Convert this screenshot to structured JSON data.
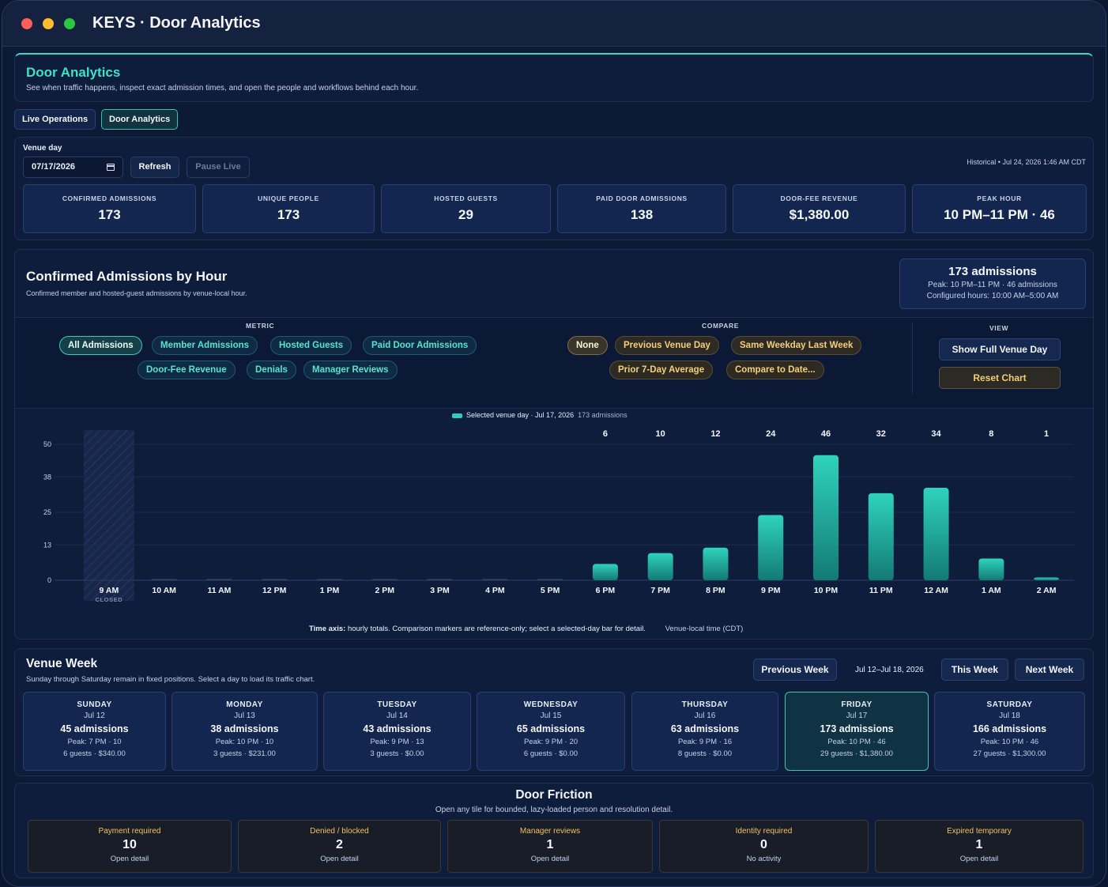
{
  "window": {
    "title": "KEYS · Door Analytics"
  },
  "header": {
    "title": "Door Analytics",
    "subtitle": "See when traffic happens, inspect exact admission times, and open the people and workflows behind each hour."
  },
  "tabs": [
    {
      "label": "Live Operations",
      "active": false
    },
    {
      "label": "Door Analytics",
      "active": true
    }
  ],
  "controls": {
    "venue_day_label": "Venue day",
    "date_value": "07/17/2026",
    "refresh_label": "Refresh",
    "pause_live_label": "Pause Live",
    "historical_text": "Historical • Jul 24, 2026 1:46 AM CDT"
  },
  "kpis": [
    {
      "label": "CONFIRMED ADMISSIONS",
      "value": "173"
    },
    {
      "label": "UNIQUE PEOPLE",
      "value": "173"
    },
    {
      "label": "HOSTED GUESTS",
      "value": "29"
    },
    {
      "label": "PAID DOOR ADMISSIONS",
      "value": "138"
    },
    {
      "label": "DOOR-FEE REVENUE",
      "value": "$1,380.00"
    },
    {
      "label": "PEAK HOUR",
      "value": "10 PM–11 PM · 46"
    }
  ],
  "chart_section": {
    "title": "Confirmed Admissions by Hour",
    "subtitle": "Confirmed member and hosted-guest admissions by venue-local hour.",
    "summary": {
      "headline": "173 admissions",
      "peak": "Peak: 10 PM–11 PM · 46 admissions",
      "hours": "Configured hours: 10:00 AM–5:00 AM"
    },
    "metric_label": "METRIC",
    "metric_options": [
      "All Admissions",
      "Member Admissions",
      "Hosted Guests",
      "Paid Door Admissions",
      "Door-Fee Revenue",
      "Denials",
      "Manager Reviews"
    ],
    "compare_label": "COMPARE",
    "compare_options": [
      "None",
      "Previous Venue Day",
      "Same Weekday Last Week",
      "Prior 7-Day Average",
      "Compare to Date..."
    ],
    "view_label": "VIEW",
    "show_full_label": "Show Full Venue Day",
    "reset_label": "Reset Chart",
    "legend_text": "Selected venue day · Jul 17, 2026",
    "legend_count": "173 admissions",
    "footnote_bold": "Time axis:",
    "footnote_text": "hourly totals. Comparison markers are reference-only; select a selected-day bar for detail.",
    "timezone": "Venue-local time (CDT)",
    "closed_label": "CLOSED"
  },
  "chart_data": {
    "type": "bar",
    "categories": [
      "9 AM",
      "10 AM",
      "11 AM",
      "12 PM",
      "1 PM",
      "2 PM",
      "3 PM",
      "4 PM",
      "5 PM",
      "6 PM",
      "7 PM",
      "8 PM",
      "9 PM",
      "10 PM",
      "11 PM",
      "12 AM",
      "1 AM",
      "2 AM"
    ],
    "values": [
      0,
      0,
      0,
      0,
      0,
      0,
      0,
      0,
      0,
      6,
      10,
      12,
      24,
      46,
      32,
      34,
      8,
      1
    ],
    "value_labels": [
      "",
      "",
      "",
      "",
      "",
      "",
      "",
      "",
      "",
      "6",
      "10",
      "12",
      "24",
      "46",
      "32",
      "34",
      "8",
      "1"
    ],
    "closed": [
      true,
      false,
      false,
      false,
      false,
      false,
      false,
      false,
      false,
      false,
      false,
      false,
      false,
      false,
      false,
      false,
      false,
      false
    ],
    "y_ticks": [
      "0",
      "13",
      "25",
      "38",
      "50"
    ],
    "ylim": [
      0,
      50
    ],
    "grid": true,
    "bar_color": "#2fd3bd",
    "legend_position": "top-center"
  },
  "week": {
    "title": "Venue Week",
    "subtitle": "Sunday through Saturday remain in fixed positions. Select a day to load its traffic chart.",
    "previous_label": "Previous Week",
    "range": "Jul 12–Jul 18, 2026",
    "this_label": "This Week",
    "next_label": "Next Week",
    "days": [
      {
        "name": "SUNDAY",
        "date": "Jul 12",
        "admissions": "45 admissions",
        "peak": "Peak: 7 PM · 10",
        "guests": "6 guests · $340.00",
        "selected": false
      },
      {
        "name": "MONDAY",
        "date": "Jul 13",
        "admissions": "38 admissions",
        "peak": "Peak: 10 PM · 10",
        "guests": "3 guests · $231.00",
        "selected": false
      },
      {
        "name": "TUESDAY",
        "date": "Jul 14",
        "admissions": "43 admissions",
        "peak": "Peak: 9 PM · 13",
        "guests": "3 guests · $0.00",
        "selected": false
      },
      {
        "name": "WEDNESDAY",
        "date": "Jul 15",
        "admissions": "65 admissions",
        "peak": "Peak: 9 PM · 20",
        "guests": "6 guests · $0.00",
        "selected": false
      },
      {
        "name": "THURSDAY",
        "date": "Jul 16",
        "admissions": "63 admissions",
        "peak": "Peak: 9 PM · 16",
        "guests": "8 guests · $0.00",
        "selected": false
      },
      {
        "name": "FRIDAY",
        "date": "Jul 17",
        "admissions": "173 admissions",
        "peak": "Peak: 10 PM · 46",
        "guests": "29 guests · $1,380.00",
        "selected": true
      },
      {
        "name": "SATURDAY",
        "date": "Jul 18",
        "admissions": "166 admissions",
        "peak": "Peak: 10 PM · 46",
        "guests": "27 guests · $1,300.00",
        "selected": false
      }
    ]
  },
  "friction": {
    "title": "Door Friction",
    "subtitle": "Open any tile for bounded, lazy-loaded person and resolution detail.",
    "tiles": [
      {
        "label": "Payment required",
        "value": "10",
        "detail": "Open detail"
      },
      {
        "label": "Denied / blocked",
        "value": "2",
        "detail": "Open detail"
      },
      {
        "label": "Manager reviews",
        "value": "1",
        "detail": "Open detail"
      },
      {
        "label": "Identity required",
        "value": "0",
        "detail": "No activity"
      },
      {
        "label": "Expired temporary",
        "value": "1",
        "detail": "Open detail"
      }
    ]
  }
}
